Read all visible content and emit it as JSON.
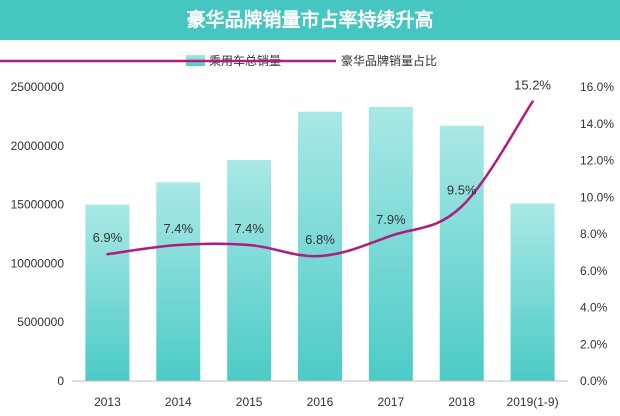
{
  "colors": {
    "title_bg": "#46c6c1",
    "bar_top": "#a9e8e6",
    "bar_bottom": "#4ccbc6",
    "line": "#b01b7e",
    "axis": "#bfbfbf"
  },
  "chart_data": {
    "type": "bar",
    "title": "豪华品牌销量市占率持续升高",
    "categories": [
      "2013",
      "2014",
      "2015",
      "2016",
      "2017",
      "2018",
      "2019(1-9)"
    ],
    "series": [
      {
        "name": "乘用车总销量",
        "type": "bar",
        "axis": "left",
        "values": [
          15000000,
          16900000,
          18800000,
          22900000,
          23300000,
          21700000,
          15100000
        ]
      },
      {
        "name": "豪华品牌销量占比",
        "type": "line",
        "axis": "right",
        "values": [
          6.9,
          7.4,
          7.4,
          6.8,
          7.9,
          9.5,
          15.2
        ],
        "labels": [
          "6.9%",
          "7.4%",
          "7.4%",
          "6.8%",
          "7.9%",
          "9.5%",
          "15.2%"
        ]
      }
    ],
    "y_left": {
      "min": 0,
      "max": 25000000,
      "ticks": [
        0,
        5000000,
        10000000,
        15000000,
        20000000,
        25000000
      ],
      "tick_labels": [
        "0",
        "5000000",
        "10000000",
        "15000000",
        "20000000",
        "25000000"
      ]
    },
    "y_right": {
      "min": 0,
      "max": 16,
      "ticks": [
        0,
        2,
        4,
        6,
        8,
        10,
        12,
        14,
        16
      ],
      "tick_labels": [
        "0.0%",
        "2.0%",
        "4.0%",
        "6.0%",
        "8.0%",
        "10.0%",
        "12.0%",
        "14.0%",
        "16.0%"
      ]
    },
    "legend_position": "top-center",
    "grid": false
  }
}
